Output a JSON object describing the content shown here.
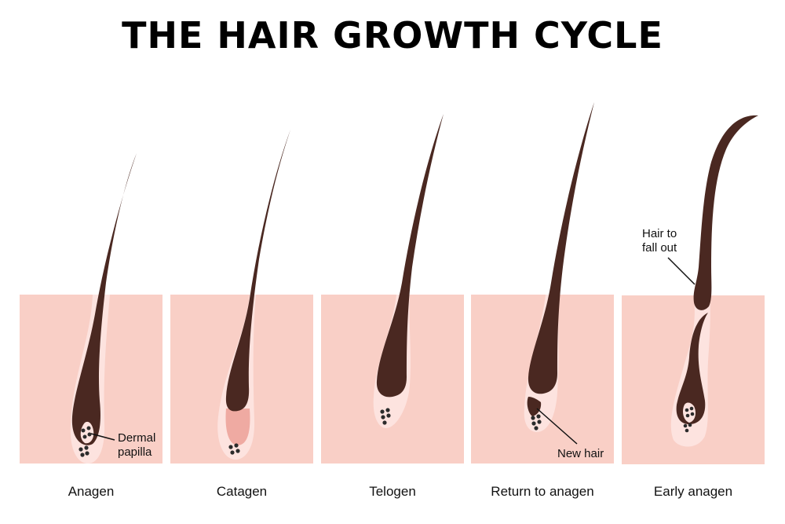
{
  "title": "THE HAIR GROWTH CYCLE",
  "stages": [
    {
      "label": "Anagen"
    },
    {
      "label": "Catagen"
    },
    {
      "label": "Telogen"
    },
    {
      "label": "Return to anagen"
    },
    {
      "label": "Early anagen"
    }
  ],
  "annotations": {
    "dermal_papilla_line1": "Dermal",
    "dermal_papilla_line2": "papilla",
    "new_hair": "New hair",
    "hair_to_fall_out_line1": "Hair to",
    "hair_to_fall_out_line2": "fall out"
  },
  "colors": {
    "skin": "#f9cfc6",
    "follicle": "#fde3df",
    "hair": "#4a2821",
    "papilla_dots": "#2b2b2b",
    "catagen_bulb": "#efaaa2"
  }
}
